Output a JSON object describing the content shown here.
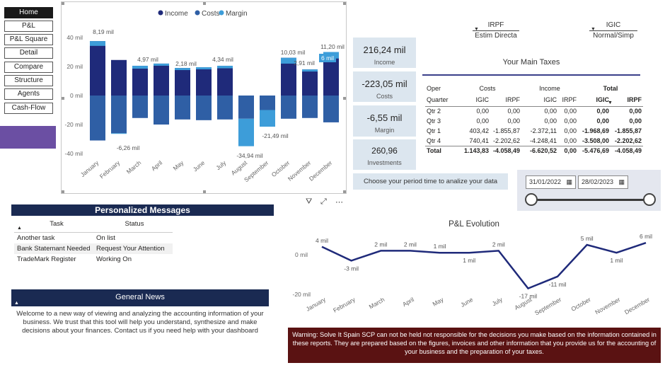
{
  "nav": {
    "items": [
      "Home",
      "P&L",
      "P&L Square",
      "Detail",
      "Compare",
      "Structure",
      "Agents",
      "Cash-Flow"
    ],
    "active": "Home"
  },
  "waterfall": {
    "legend": [
      "Income",
      "Costs",
      "Margin"
    ],
    "colors": {
      "income": "#1f2a7a",
      "costs": "#2f5fa5",
      "margin": "#3d9dd9"
    },
    "y_ticks": [
      "40 mil",
      "20 mil",
      "0 mil",
      "-20 mil",
      "-40 mil"
    ],
    "months": [
      "January",
      "February",
      "March",
      "April",
      "May",
      "June",
      "July",
      "August",
      "September",
      "October",
      "November",
      "December"
    ],
    "labels": [
      "8,19 mil",
      "-6,26 mil",
      "4,97 mil",
      "2,18 mil",
      "4,34 mil",
      "-34,94 mil",
      "-21,49 mil",
      "10,03 mil",
      "2,91 mil",
      "11,20 mil",
      "6 mil"
    ]
  },
  "chart_data": [
    {
      "type": "bar",
      "title": "",
      "categories": [
        "January",
        "February",
        "March",
        "April",
        "May",
        "June",
        "July",
        "August",
        "September",
        "October",
        "November",
        "December"
      ],
      "series": [
        {
          "name": "Income",
          "values": [
            37.5,
            24.5,
            20.5,
            22,
            19,
            19.5,
            20.5,
            0,
            0,
            26,
            18,
            30
          ]
        },
        {
          "name": "Costs",
          "values": [
            -31,
            -26,
            -15.5,
            -20,
            -16.5,
            -17,
            -16.5,
            -16,
            -10,
            -16,
            -15.5,
            -18.5
          ]
        },
        {
          "name": "Margin",
          "values": [
            8.19,
            -6.26,
            4.97,
            2.18,
            2.2,
            2.9,
            4.34,
            -34.94,
            -21.49,
            10.03,
            2.91,
            11.2
          ]
        }
      ],
      "ylim": [
        -44,
        44
      ]
    },
    {
      "type": "line",
      "title": "P&L Evolution",
      "categories": [
        "January",
        "February",
        "March",
        "April",
        "May",
        "June",
        "July",
        "August",
        "September",
        "October",
        "November",
        "December"
      ],
      "values": [
        4,
        -3,
        2,
        2,
        1,
        1,
        2,
        -17,
        -11,
        5,
        1,
        6
      ],
      "ylim": [
        -20,
        8
      ]
    }
  ],
  "kpis": [
    {
      "value": "216,24 mil",
      "label": "Income"
    },
    {
      "value": "-223,05 mil",
      "label": "Costs"
    },
    {
      "value": "-6,55 mil",
      "label": "Margin"
    },
    {
      "value": "260,96",
      "label": "Investments"
    }
  ],
  "filters": {
    "irpf": {
      "title": "IRPF",
      "value": "Estim Directa"
    },
    "igic": {
      "title": "IGIC",
      "value": "Normal/Simp"
    }
  },
  "taxes": {
    "title": "Your Main Taxes",
    "group_headers": [
      "Oper",
      "Costs",
      "Income",
      "Total"
    ],
    "sub_headers": [
      "Quarter",
      "IGIC",
      "IRPF",
      "IGIC",
      "IRPF",
      "IGIC",
      "IRPF"
    ],
    "rows": [
      [
        "Qtr 2",
        "0,00",
        "0,00",
        "0,00",
        "0,00",
        "0,00",
        "0,00"
      ],
      [
        "Qtr 3",
        "0,00",
        "0,00",
        "0,00",
        "0,00",
        "0,00",
        "0,00"
      ],
      [
        "Qtr 1",
        "403,42",
        "-1.855,87",
        "-2.372,11",
        "0,00",
        "-1.968,69",
        "-1.855,87"
      ],
      [
        "Qtr 4",
        "740,41",
        "-2.202,62",
        "-4.248,41",
        "0,00",
        "-3.508,00",
        "-2.202,62"
      ],
      [
        "Total",
        "1.143,83",
        "-4.058,49",
        "-6.620,52",
        "0,00",
        "-5.476,69",
        "-4.058,49"
      ]
    ]
  },
  "period": {
    "label": "Choose your period time to analize your data",
    "start": "31/01/2022",
    "end": "28/02/2023"
  },
  "messages": {
    "title": "Personalized Messages",
    "headers": [
      "Task",
      "Status"
    ],
    "rows": [
      [
        "Another task",
        "On list"
      ],
      [
        "Bank Statemant Needed",
        "Request Your Attention"
      ],
      [
        "TradeMark Register",
        "Working On"
      ]
    ]
  },
  "pl_evolution": {
    "title": "P&L Evolution",
    "y_ticks": [
      "0 mil",
      "-20 mil"
    ],
    "point_labels": [
      "4 mil",
      "-3 mil",
      "2 mil",
      "2 mil",
      "1 mil",
      "1 mil",
      "2 mil",
      "-17 mil",
      "-11 mil",
      "5 mil",
      "1 mil",
      "6 mil"
    ]
  },
  "news": {
    "title": "General News",
    "body": "Welcome to a new way of viewing and analyzing the accounting information of your business. We trust that this tool will help you understand, synthesize and make decisions about your finances. Contact us if you need help with your dashboard"
  },
  "warning": "Warning: Solve It Spain SCP can not be held not responsible for the decisions you make based on the information contained in these reports. They are prepared based on the figures, invoices and other information that you provide us for the accounting of your business and the preparation of your taxes."
}
